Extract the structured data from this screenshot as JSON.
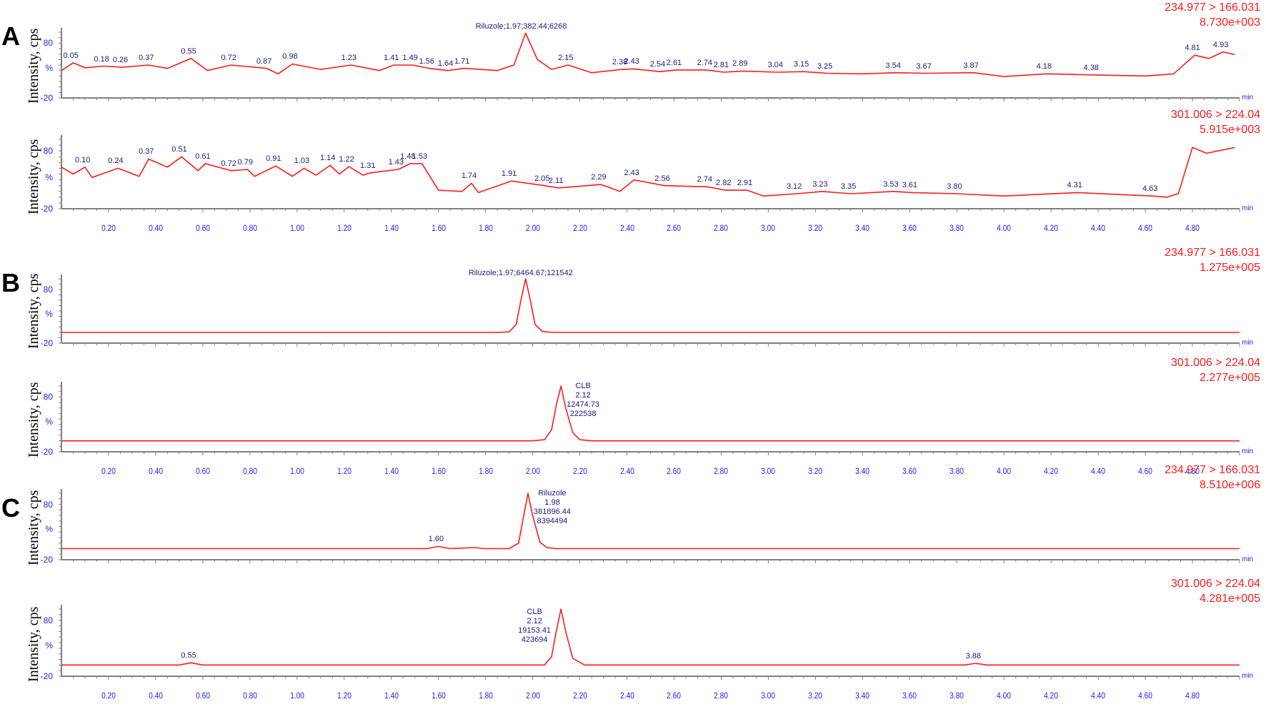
{
  "figure": {
    "panels": [
      {
        "letter": "A"
      },
      {
        "letter": "B"
      },
      {
        "letter": "C"
      }
    ],
    "y_axis_label": "Intensity, cps",
    "y_ticks": [
      "80",
      "%",
      "-20"
    ],
    "x_unit": "min",
    "x_ticks": [
      "0.20",
      "0.40",
      "0.60",
      "0.80",
      "1.00",
      "1.20",
      "1.40",
      "1.60",
      "1.80",
      "2.00",
      "2.20",
      "2.40",
      "2.60",
      "2.80",
      "3.00",
      "3.20",
      "3.40",
      "3.60",
      "3.80",
      "4.00",
      "4.20",
      "4.40",
      "4.60",
      "4.80"
    ],
    "colors": {
      "trace": "#ff1a1a",
      "axis_text": "#2020ff",
      "peak_label": "#1a1a80",
      "baseline": "#808080"
    }
  },
  "chart_data": [
    {
      "type": "line",
      "panel": "A",
      "title": "234.977 > 166.031",
      "max_intensity": "8.730e+003",
      "xlabel": "min",
      "ylabel": "Intensity, cps",
      "xlim": [
        0,
        5.0
      ],
      "ylim": [
        -20,
        100
      ],
      "annotation": "Riluzole;1.97;382.44;6268",
      "peaks": [
        "0.05",
        "0.18",
        "0.26",
        "0.37",
        "0.55",
        "0.72",
        "0.87",
        "0.98",
        "1.23",
        "1.41",
        "1.49",
        "1.56",
        "1.64",
        "1.71",
        "2.15",
        "2.38",
        "2.43",
        "2.54",
        "2.61",
        "2.74",
        "2.81",
        "2.89",
        "3.04",
        "3.15",
        "3.25",
        "3.54",
        "3.67",
        "3.87",
        "4.18",
        "4.38",
        "4.81",
        "4.93"
      ],
      "x": [
        0.0,
        0.05,
        0.1,
        0.18,
        0.26,
        0.37,
        0.45,
        0.55,
        0.62,
        0.72,
        0.87,
        0.92,
        0.98,
        1.1,
        1.23,
        1.35,
        1.41,
        1.49,
        1.56,
        1.64,
        1.71,
        1.85,
        1.92,
        1.97,
        2.02,
        2.08,
        2.15,
        2.25,
        2.38,
        2.43,
        2.54,
        2.61,
        2.74,
        2.81,
        2.89,
        3.04,
        3.15,
        3.25,
        3.4,
        3.54,
        3.67,
        3.87,
        4.0,
        4.18,
        4.38,
        4.6,
        4.72,
        4.81,
        4.87,
        4.93,
        4.98
      ],
      "y": [
        30,
        44,
        35,
        38,
        36,
        40,
        34,
        52,
        30,
        40,
        34,
        24,
        42,
        32,
        40,
        30,
        40,
        40,
        34,
        30,
        34,
        30,
        40,
        98,
        50,
        32,
        40,
        26,
        32,
        33,
        28,
        31,
        31,
        27,
        29,
        27,
        28,
        25,
        24,
        26,
        25,
        26,
        19,
        24,
        22,
        20,
        24,
        58,
        52,
        64,
        59
      ]
    },
    {
      "type": "line",
      "panel": "A",
      "title": "301.006 > 224.04",
      "max_intensity": "5.915e+003",
      "xlabel": "min",
      "ylabel": "Intensity, cps",
      "xlim": [
        0,
        5.0
      ],
      "ylim": [
        -20,
        100
      ],
      "peaks": [
        "0.10",
        "0.24",
        "0.37",
        "0.51",
        "0.61",
        "0.72",
        "0.79",
        "0.91",
        "1.03",
        "1.14",
        "1.22",
        "1.31",
        "1.43",
        "1.48",
        "1.53",
        "1.74",
        "1.91",
        "2.05",
        "2.11",
        "2.29",
        "2.43",
        "2.56",
        "2.74",
        "2.82",
        "2.91",
        "3.12",
        "3.23",
        "3.35",
        "3.53",
        "3.61",
        "3.80",
        "4.31",
        "4.63"
      ],
      "x": [
        0.0,
        0.05,
        0.1,
        0.13,
        0.24,
        0.33,
        0.37,
        0.45,
        0.51,
        0.58,
        0.61,
        0.72,
        0.79,
        0.82,
        0.91,
        0.98,
        1.03,
        1.08,
        1.14,
        1.18,
        1.22,
        1.28,
        1.31,
        1.43,
        1.48,
        1.53,
        1.6,
        1.7,
        1.74,
        1.77,
        1.91,
        2.05,
        2.11,
        2.29,
        2.37,
        2.43,
        2.56,
        2.74,
        2.82,
        2.91,
        2.98,
        3.12,
        3.23,
        3.35,
        3.53,
        3.61,
        3.8,
        4.0,
        4.31,
        4.63,
        4.69,
        4.74,
        4.8,
        4.86,
        4.98
      ],
      "y": [
        52,
        40,
        52,
        34,
        50,
        36,
        66,
        52,
        70,
        46,
        58,
        46,
        48,
        36,
        54,
        36,
        50,
        38,
        55,
        40,
        53,
        38,
        42,
        48,
        58,
        58,
        12,
        10,
        24,
        8,
        28,
        20,
        16,
        22,
        10,
        30,
        20,
        18,
        12,
        12,
        2,
        6,
        10,
        6,
        10,
        8,
        6,
        2,
        8,
        2,
        0,
        6,
        86,
        76,
        86
      ]
    },
    {
      "type": "line",
      "panel": "B",
      "title": "234.977 > 166.031",
      "max_intensity": "1.275e+005",
      "xlabel": "min",
      "ylabel": "Intensity, cps",
      "xlim": [
        0,
        5.0
      ],
      "ylim": [
        -20,
        100
      ],
      "annotation": "Riluzole;1.97;6464.67;121542",
      "x": [
        0.0,
        1.85,
        1.9,
        1.93,
        1.95,
        1.97,
        1.99,
        2.01,
        2.04,
        2.08,
        5.0
      ],
      "y": [
        0,
        0,
        1,
        15,
        60,
        100,
        60,
        15,
        2,
        0,
        0
      ]
    },
    {
      "type": "line",
      "panel": "B",
      "title": "301.006 > 224.04",
      "max_intensity": "2.277e+005",
      "xlabel": "min",
      "ylabel": "Intensity, cps",
      "xlim": [
        0,
        5.0
      ],
      "ylim": [
        -20,
        100
      ],
      "annotation": [
        "CLB",
        "2.12",
        "12474.73",
        "222538"
      ],
      "x": [
        0.0,
        2.0,
        2.05,
        2.08,
        2.1,
        2.12,
        2.14,
        2.17,
        2.2,
        2.25,
        5.0
      ],
      "y": [
        0,
        0,
        2,
        20,
        65,
        100,
        60,
        15,
        2,
        0,
        0
      ]
    },
    {
      "type": "line",
      "panel": "C",
      "title": "234.977 > 166.031",
      "max_intensity": "8.510e+006",
      "xlabel": "min",
      "ylabel": "Intensity, cps",
      "xlim": [
        0,
        5.0
      ],
      "ylim": [
        -20,
        100
      ],
      "annotation": [
        "Riluzole",
        "1.98",
        "381896.44",
        "8394494"
      ],
      "peaks": [
        "1.60"
      ],
      "x": [
        0.0,
        1.55,
        1.6,
        1.65,
        1.75,
        1.8,
        1.9,
        1.94,
        1.96,
        1.98,
        2.0,
        2.03,
        2.06,
        2.1,
        5.0
      ],
      "y": [
        0,
        0,
        4,
        0,
        2,
        0,
        0,
        10,
        55,
        100,
        60,
        12,
        2,
        0,
        0
      ]
    },
    {
      "type": "line",
      "panel": "C",
      "title": "301.006 > 224.04",
      "max_intensity": "4.281e+005",
      "xlabel": "min",
      "ylabel": "Intensity, cps",
      "xlim": [
        0,
        5.0
      ],
      "ylim": [
        -20,
        100
      ],
      "annotation": [
        "CLB",
        "2.12",
        "19153.41",
        "423694"
      ],
      "peaks": [
        "0.55",
        "3.88"
      ],
      "x": [
        0.0,
        0.5,
        0.55,
        0.6,
        2.05,
        2.08,
        2.1,
        2.12,
        2.14,
        2.17,
        2.22,
        3.83,
        3.88,
        3.93,
        5.0
      ],
      "y": [
        0,
        0,
        4,
        0,
        0,
        15,
        60,
        100,
        60,
        12,
        0,
        0,
        3,
        0,
        0
      ]
    }
  ]
}
